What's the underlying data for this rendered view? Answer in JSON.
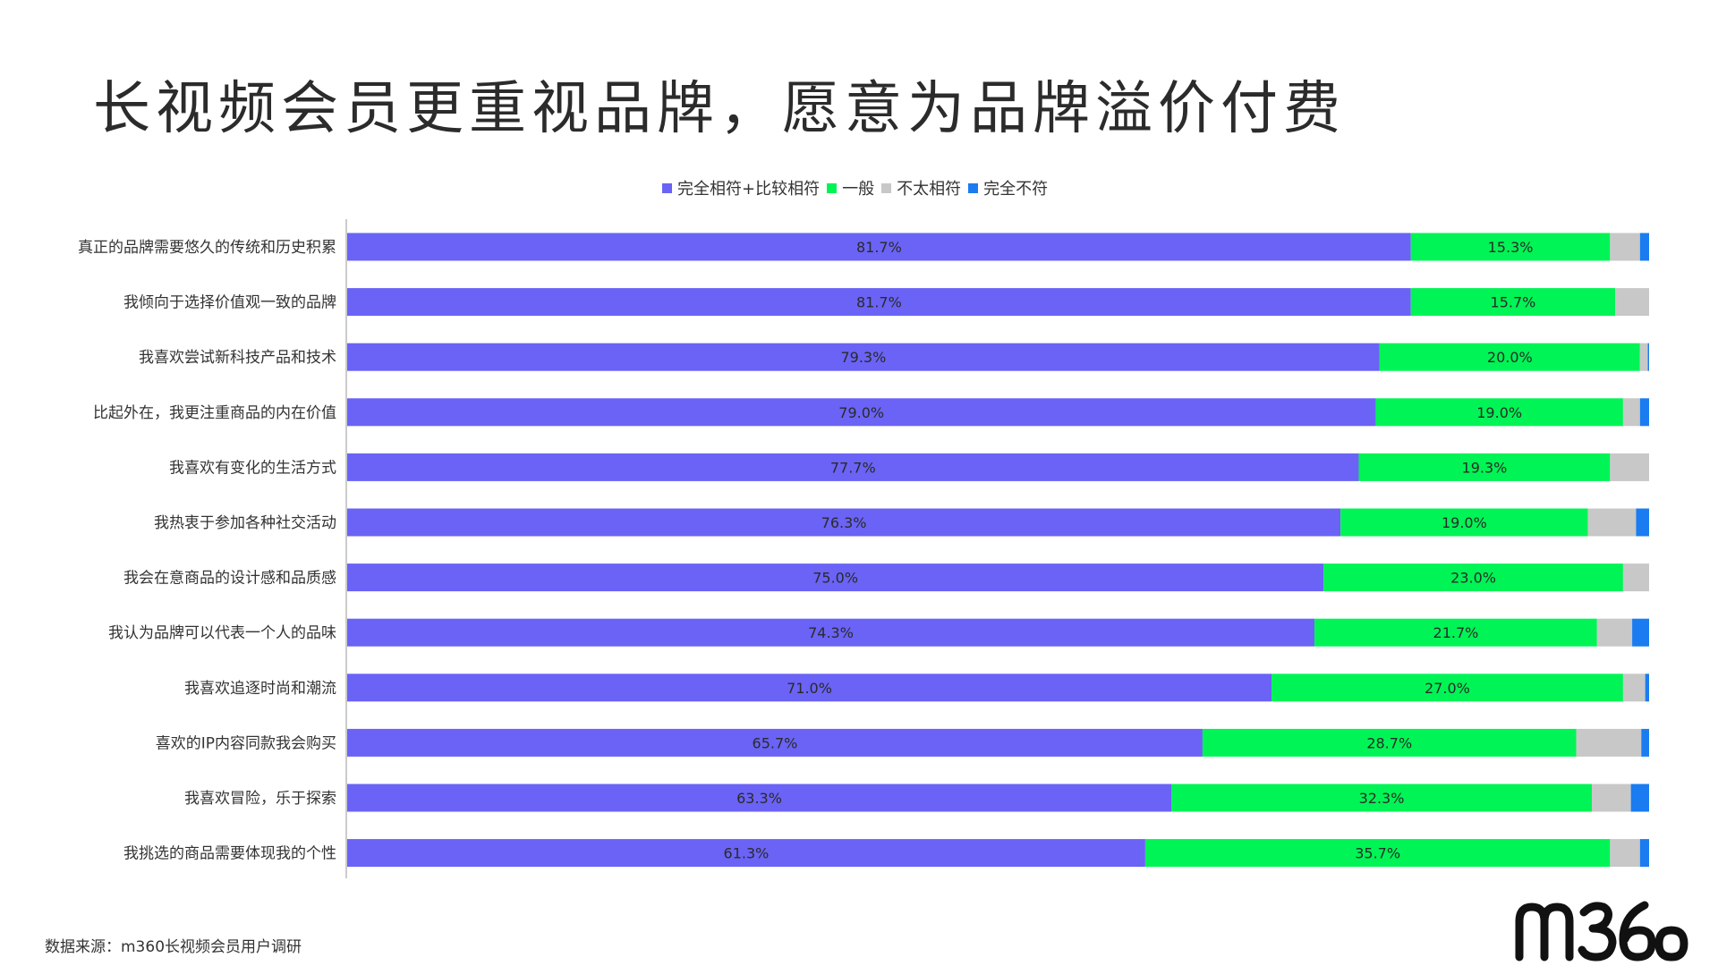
{
  "title": "长视频会员更重视品牌，愿意为品牌溢价付费",
  "source": "数据来源：m360长视频会员用户调研",
  "logo_text": "m360",
  "colors": {
    "series": [
      "#6a63f5",
      "#00f455",
      "#c8c8c8",
      "#1a7cf0"
    ],
    "axis": "#bbbbbb"
  },
  "chart_data": {
    "type": "bar",
    "orientation": "horizontal",
    "stacked": true,
    "xlim": [
      0,
      100
    ],
    "legend_position": "top",
    "categories": [
      "真正的品牌需要悠久的传统和历史积累",
      "我倾向于选择价值观一致的品牌",
      "我喜欢尝试新科技产品和技术",
      "比起外在，我更注重商品的内在价值",
      "我喜欢有变化的生活方式",
      "我热衷于参加各种社交活动",
      "我会在意商品的设计感和品质感",
      "我认为品牌可以代表一个人的品味",
      "我喜欢追逐时尚和潮流",
      "喜欢的IP内容同款我会购买",
      "我喜欢冒险，乐于探索",
      "我挑选的商品需要体现我的个性"
    ],
    "series": [
      {
        "name": "完全相符+比较相符",
        "values": [
          81.7,
          81.7,
          79.3,
          79.0,
          77.7,
          76.3,
          75.0,
          74.3,
          71.0,
          65.7,
          63.3,
          61.3
        ],
        "labels": [
          "81.7%",
          "81.7%",
          "79.3%",
          "79.0%",
          "77.7%",
          "76.3%",
          "75.0%",
          "74.3%",
          "71.0%",
          "65.7%",
          "63.3%",
          "61.3%"
        ]
      },
      {
        "name": "一般",
        "values": [
          15.3,
          15.7,
          20.0,
          19.0,
          19.3,
          19.0,
          23.0,
          21.7,
          27.0,
          28.7,
          32.3,
          35.7
        ],
        "labels": [
          "15.3%",
          "15.7%",
          "20.0%",
          "19.0%",
          "19.3%",
          "19.0%",
          "23.0%",
          "21.7%",
          "27.0%",
          "28.7%",
          "32.3%",
          "35.7%"
        ]
      },
      {
        "name": "不太相符",
        "values": [
          2.3,
          2.6,
          0.6,
          1.3,
          3.0,
          3.7,
          2.0,
          2.7,
          1.7,
          5.0,
          3.0,
          2.3
        ]
      },
      {
        "name": "完全不符",
        "values": [
          0.7,
          0.0,
          0.1,
          0.7,
          0.0,
          1.0,
          0.0,
          1.3,
          0.3,
          0.6,
          1.4,
          0.7
        ]
      }
    ]
  }
}
